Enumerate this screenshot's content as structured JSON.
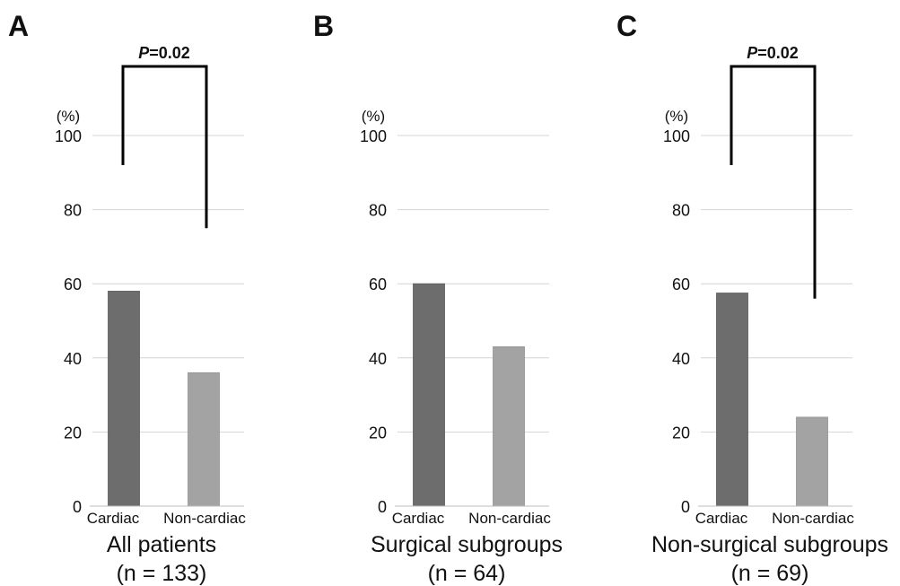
{
  "colors": {
    "cardiac_bar": "#6d6d6d",
    "noncardiac_bar": "#a3a3a3",
    "grid": "#d4d4d4",
    "text": "#111111",
    "bracket": "#000000"
  },
  "chart_data": [
    {
      "type": "bar",
      "panel_letter": "A",
      "unit": "(%)",
      "categories": [
        "Cardiac",
        "Non-cardiac"
      ],
      "values": [
        58,
        36
      ],
      "ylim": [
        0,
        100
      ],
      "yticks": [
        "0",
        "20",
        "40",
        "60",
        "80",
        "100"
      ],
      "grid": true,
      "xlabel": "All patients",
      "n_label": "(n = 133)",
      "significance": {
        "italic": "P",
        "rest": "=0.02",
        "left_end": 92,
        "right_end": 75
      }
    },
    {
      "type": "bar",
      "panel_letter": "B",
      "unit": "(%)",
      "categories": [
        "Cardiac",
        "Non-cardiac"
      ],
      "values": [
        60,
        43
      ],
      "ylim": [
        0,
        100
      ],
      "yticks": [
        "0",
        "20",
        "40",
        "60",
        "80",
        "100"
      ],
      "grid": true,
      "xlabel": "Surgical subgroups",
      "n_label": "(n = 64)",
      "significance": null
    },
    {
      "type": "bar",
      "panel_letter": "C",
      "unit": "(%)",
      "categories": [
        "Cardiac",
        "Non-cardiac"
      ],
      "values": [
        57.5,
        24
      ],
      "ylim": [
        0,
        100
      ],
      "yticks": [
        "0",
        "20",
        "40",
        "60",
        "80",
        "100"
      ],
      "grid": true,
      "xlabel": "Non-surgical subgroups",
      "n_label": "(n = 69)",
      "significance": {
        "italic": "P",
        "rest": "=0.02",
        "left_end": 92,
        "right_end": 56
      }
    }
  ]
}
